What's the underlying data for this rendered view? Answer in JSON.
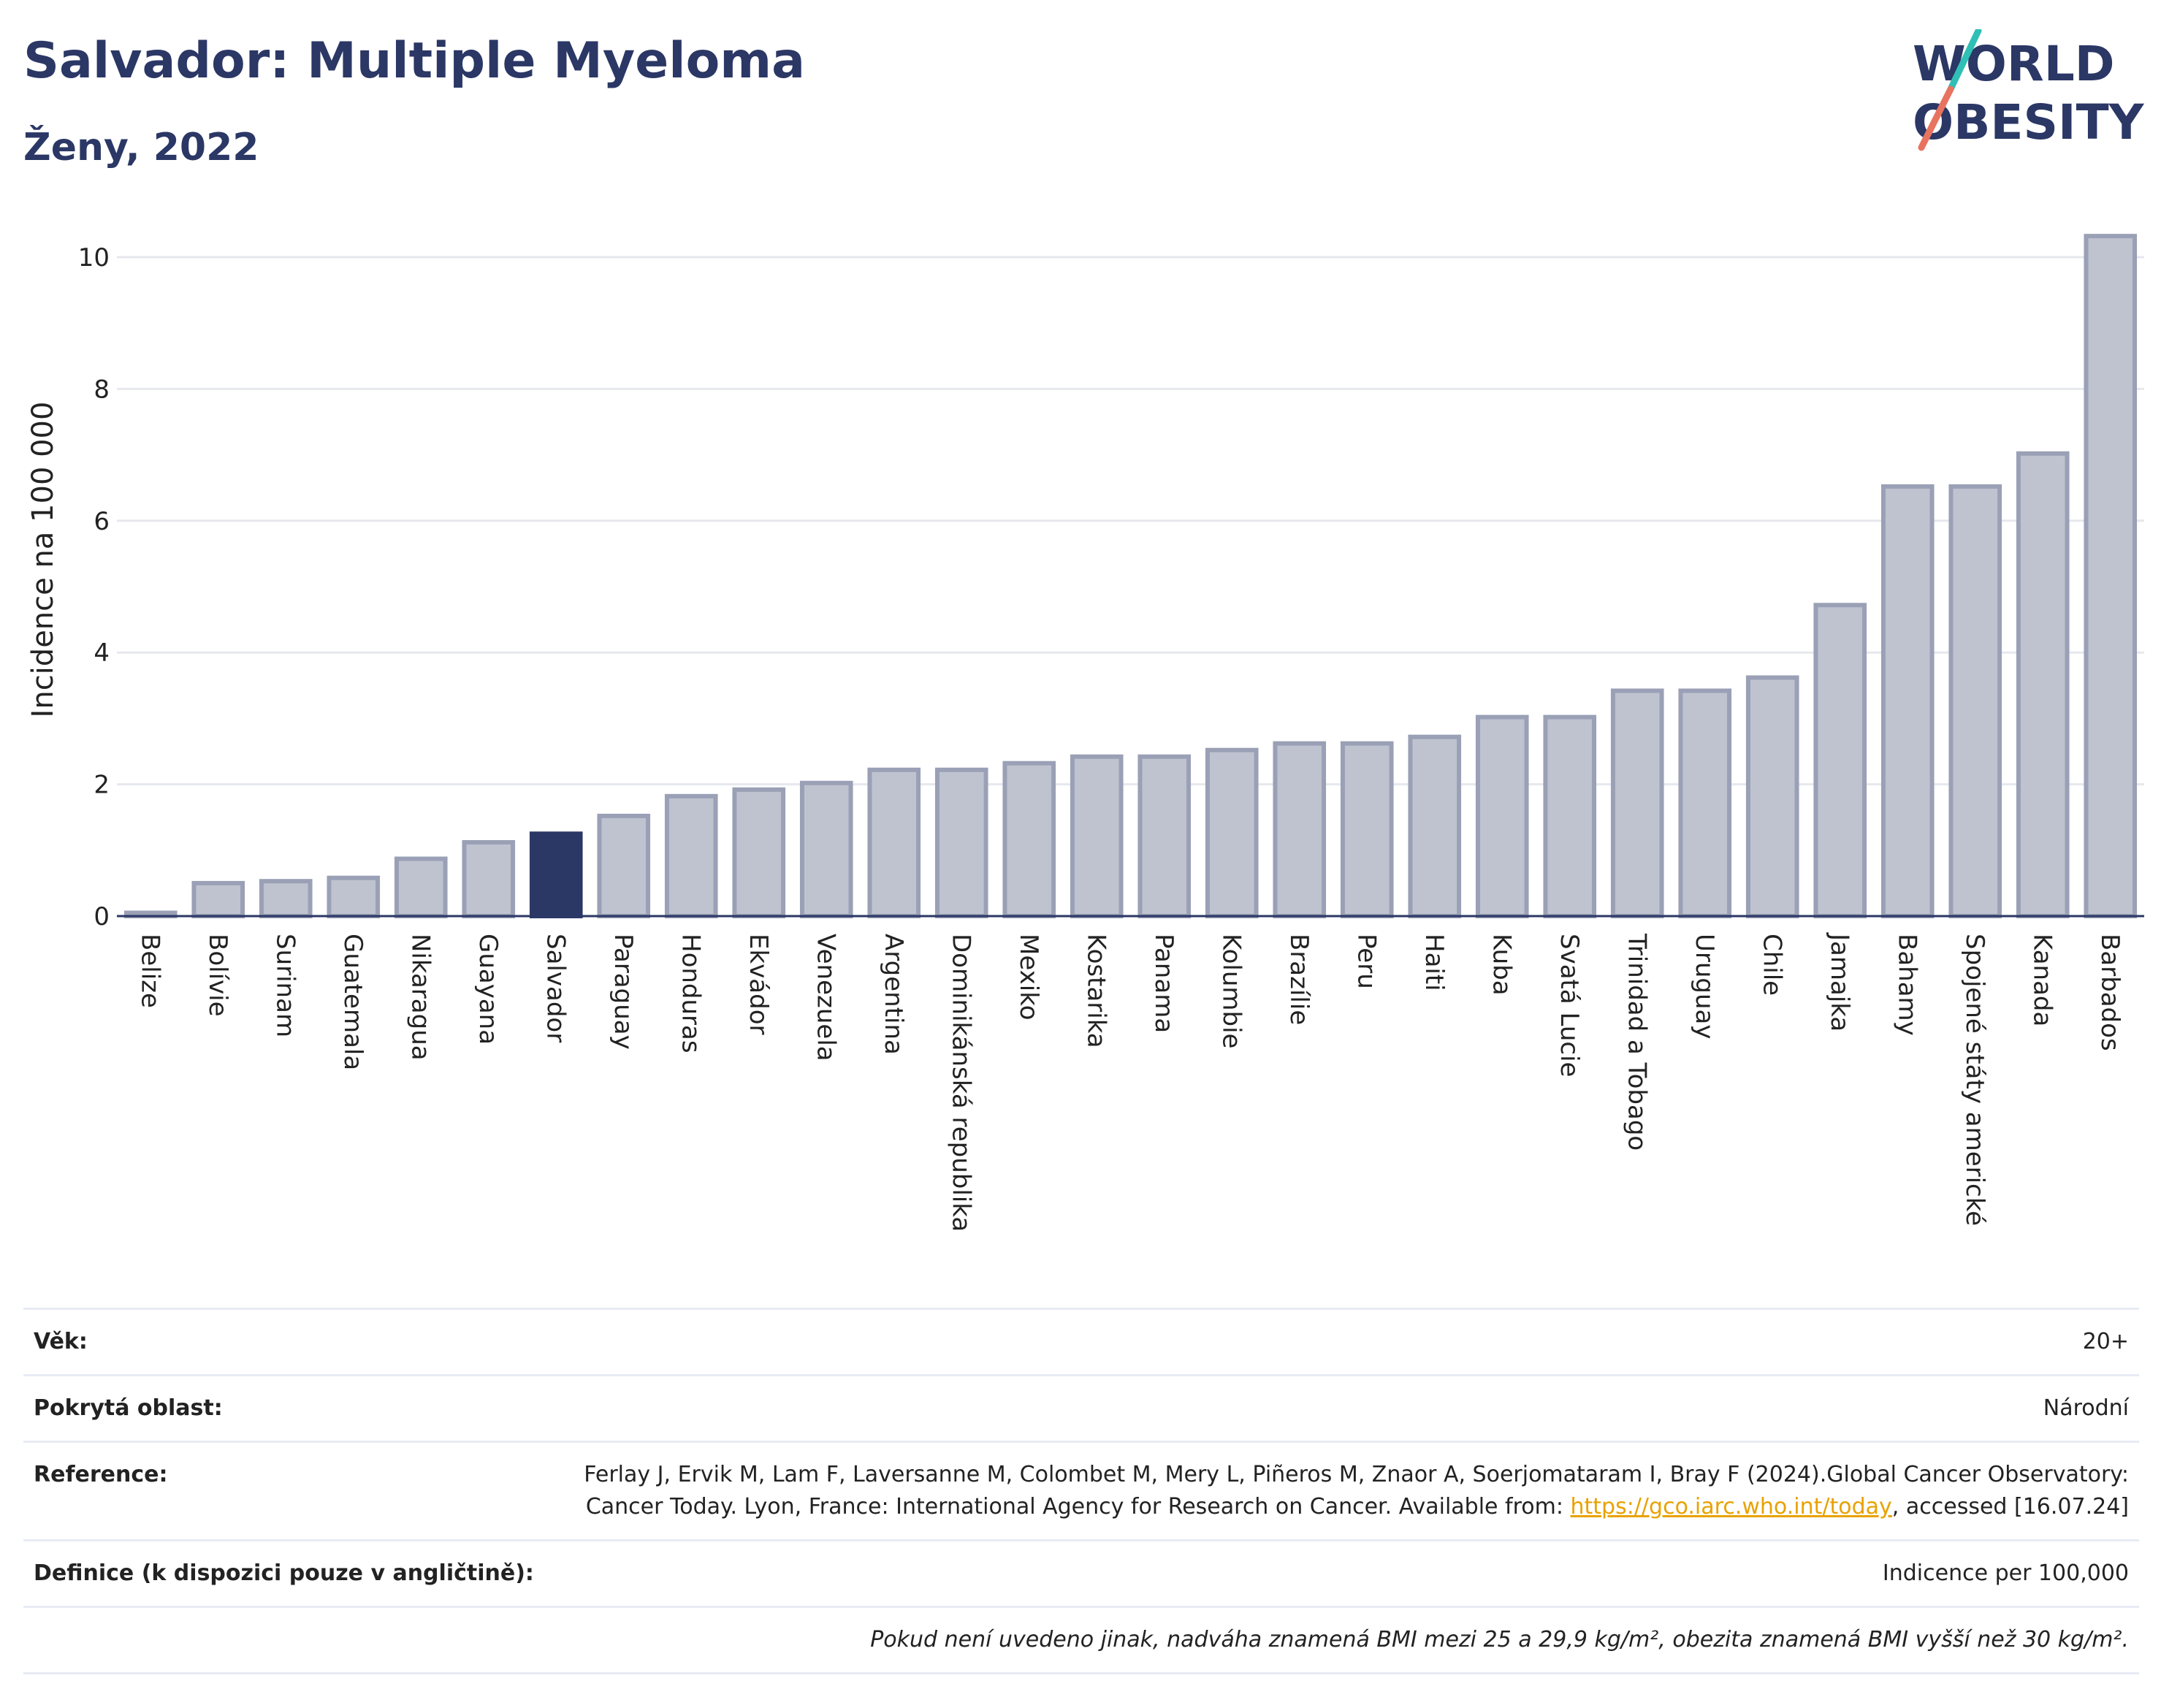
{
  "header": {
    "title": "Salvador: Multiple Myeloma",
    "subtitle": "Ženy, 2022"
  },
  "logo": {
    "line1": "WORLD",
    "line2": "OBESITY",
    "accent_colors": [
      "#2fbfb5",
      "#e8735f"
    ]
  },
  "colors": {
    "highlight": "#2b3765",
    "bar": "#bfc3d0",
    "bar_border": "#9aa0b5",
    "grid": "#e6e8ee"
  },
  "chart_data": {
    "type": "bar",
    "ylabel": "Incidence na 100 000",
    "xlabel": "",
    "ylim": [
      0,
      10.5
    ],
    "yticks": [
      0,
      2,
      4,
      6,
      8,
      10
    ],
    "highlight": "Salvador",
    "categories": [
      "Belize",
      "Bolívie",
      "Surinam",
      "Guatemala",
      "Nikaragua",
      "Guayana",
      "Salvador",
      "Paraguay",
      "Honduras",
      "Ekvádor",
      "Venezuela",
      "Argentina",
      "Dominikánská republika",
      "Mexiko",
      "Kostarika",
      "Panama",
      "Kolumbie",
      "Brazílie",
      "Peru",
      "Haiti",
      "Kuba",
      "Svatá Lucie",
      "Trinidad a Tobago",
      "Uruguay",
      "Chile",
      "Jamajka",
      "Bahamy",
      "Spojené státy americké",
      "Kanada",
      "Barbados"
    ],
    "values": [
      0.05,
      0.5,
      0.53,
      0.58,
      0.87,
      1.12,
      1.25,
      1.52,
      1.82,
      1.92,
      2.02,
      2.22,
      2.22,
      2.32,
      2.42,
      2.42,
      2.52,
      2.62,
      2.62,
      2.72,
      3.02,
      3.02,
      3.42,
      3.42,
      3.62,
      4.72,
      6.52,
      6.52,
      7.02,
      10.32
    ],
    "grid": true
  },
  "info": [
    {
      "label": "Věk:",
      "value": "20+"
    },
    {
      "label": "Pokrytá oblast:",
      "value": "Národní"
    },
    {
      "label": "Reference:",
      "value_pre": "Ferlay J, Ervik M, Lam F, Laversanne M, Colombet M, Mery L, Piñeros M, Znaor A, Soerjomataram I, Bray F (2024).Global Cancer Observatory: Cancer Today. Lyon, France: International Agency for Research on Cancer. Available from: ",
      "link": "https://gco.iarc.who.int/today",
      "value_post": ", accessed [16.07.24]"
    },
    {
      "label": "Definice (k dispozici pouze v angličtině):",
      "value": "Indicence per 100,000"
    },
    {
      "label": "",
      "value": "Pokud není uvedeno jinak, nadváha znamená BMI mezi 25 a 29,9 kg/m², obezita znamená BMI vyšší než 30 kg/m²."
    }
  ]
}
